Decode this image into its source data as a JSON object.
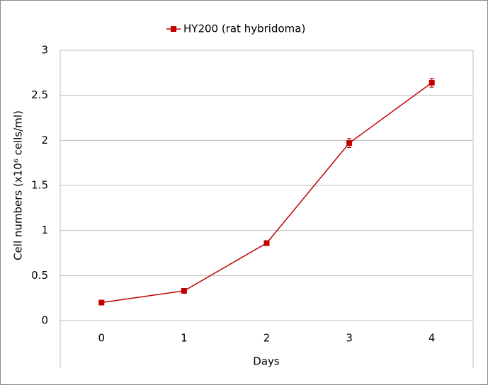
{
  "chart_data": {
    "type": "line",
    "x_label": "Days",
    "y_label": "Cell numbers (x10⁶ cells/ml)",
    "x": [
      0,
      1,
      2,
      3,
      4
    ],
    "xlim": [
      -0.5,
      4.5
    ],
    "xticks": [
      0,
      1,
      2,
      3,
      4
    ],
    "series": [
      {
        "name": "HY200 (rat hybridoma)",
        "color": "#c00000",
        "values": [
          0.2,
          0.33,
          0.86,
          1.97,
          2.64
        ],
        "errors": [
          0.01,
          0.01,
          0.01,
          0.05,
          0.05
        ]
      }
    ],
    "ylim": [
      0,
      3
    ],
    "yticks": [
      0,
      0.5,
      1,
      1.5,
      2,
      2.5,
      3
    ],
    "grid": true,
    "legend": "top"
  }
}
